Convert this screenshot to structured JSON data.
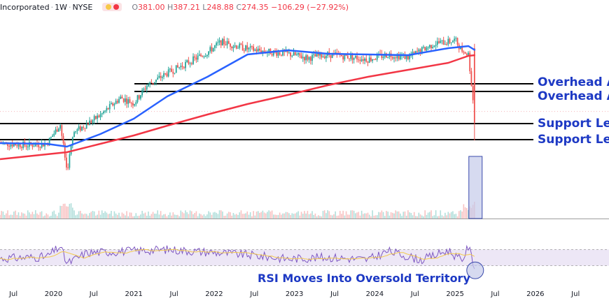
{
  "header": {
    "symbol": "Incorporated",
    "interval": "1W",
    "exchange": "NYSE",
    "open_label": "O",
    "open": "381.00",
    "high_label": "H",
    "high": "387.21",
    "low_label": "L",
    "low": "248.88",
    "close_label": "C",
    "close": "274.35",
    "change": "−106.29 (−27.92%)"
  },
  "annotations": {
    "resistance_1": "Overhead A",
    "resistance_2": "Overhead A",
    "support_1": "Support Lev",
    "support_2": "Support Lev",
    "rsi_note": "RSI Moves Into Oversold Territory"
  },
  "x_axis_labels": [
    "Jul",
    "2020",
    "Jul",
    "2021",
    "Jul",
    "2022",
    "Jul",
    "2023",
    "Jul",
    "2024",
    "Jul",
    "2025",
    "Jul",
    "2026",
    "Jul"
  ],
  "colors": {
    "up": "#26a69a",
    "down": "#ef5350",
    "ma_short": "#2962ff",
    "ma_long": "#f23645",
    "level_line": "#000000",
    "annotation_text": "#1d39c4",
    "rsi_line": "#7e57c2",
    "rsi_ma": "#f2c94c",
    "rsi_band": "#ede7f6",
    "highlight_fill": "#c5cae9",
    "highlight_stroke": "#3949ab"
  },
  "chart_data": {
    "type": "candlestick",
    "interval": "weekly",
    "x_range": [
      "2019-05",
      "2026-12"
    ],
    "y_range": [
      150,
      430
    ],
    "last_bar": {
      "open": 381.0,
      "high": 387.21,
      "low": 248.88,
      "close": 274.35,
      "change": -106.29,
      "change_pct": -27.92
    },
    "price_path": {
      "x": [
        "2019-05",
        "2019-09",
        "2019-12",
        "2020-02",
        "2020-03",
        "2020-04",
        "2020-08",
        "2020-11",
        "2021-01",
        "2021-03",
        "2021-06",
        "2021-09",
        "2021-12",
        "2022-02",
        "2022-06",
        "2022-09",
        "2022-12",
        "2023-03",
        "2023-06",
        "2023-09",
        "2023-12",
        "2024-03",
        "2024-06",
        "2024-08",
        "2024-10",
        "2024-12",
        "2025-01",
        "2025-02",
        "2025-03",
        "2025-04"
      ],
      "y": [
        245,
        242,
        244,
        272,
        205,
        260,
        285,
        310,
        302,
        328,
        345,
        360,
        375,
        390,
        380,
        376,
        373,
        367,
        372,
        369,
        365,
        372,
        368,
        378,
        388,
        390,
        393,
        378,
        372,
        275
      ]
    },
    "moving_averages": [
      {
        "x": [
          "2019-05",
          "2019-12",
          "2020-03",
          "2020-08",
          "2021-01",
          "2021-06",
          "2021-12",
          "2022-06",
          "2022-12",
          "2023-06",
          "2023-12",
          "2024-06",
          "2024-12",
          "2025-03",
          "2025-04"
        ],
        "y": [
          245,
          244,
          240,
          258,
          280,
          312,
          340,
          372,
          378,
          373,
          372,
          371,
          381,
          384,
          378
        ]
      },
      {
        "x": [
          "2019-05",
          "2020-03",
          "2020-08",
          "2021-01",
          "2021-06",
          "2021-12",
          "2022-06",
          "2022-12",
          "2023-06",
          "2023-12",
          "2024-06",
          "2024-12",
          "2025-03",
          "2025-04"
        ],
        "y": [
          222,
          232,
          244,
          256,
          270,
          286,
          301,
          314,
          328,
          340,
          350,
          360,
          370,
          371
        ]
      }
    ],
    "levels": [
      {
        "label": "Overhead A",
        "value": 330
      },
      {
        "label": "Overhead A",
        "value": 319
      },
      {
        "label": "Support Lev",
        "value": 273
      },
      {
        "label": "Support Lev",
        "value": 250
      }
    ],
    "rsi": {
      "range": [
        0,
        100
      ],
      "band": [
        30,
        70
      ],
      "x": [
        "2019-05",
        "2019-12",
        "2020-02",
        "2020-03",
        "2020-06",
        "2020-12",
        "2021-06",
        "2021-12",
        "2022-06",
        "2022-12",
        "2023-06",
        "2023-12",
        "2024-03",
        "2024-08",
        "2024-12",
        "2025-02",
        "2025-03",
        "2025-04"
      ],
      "y": [
        48,
        52,
        78,
        35,
        62,
        66,
        70,
        64,
        57,
        47,
        51,
        45,
        66,
        44,
        68,
        42,
        78,
        22
      ]
    }
  }
}
